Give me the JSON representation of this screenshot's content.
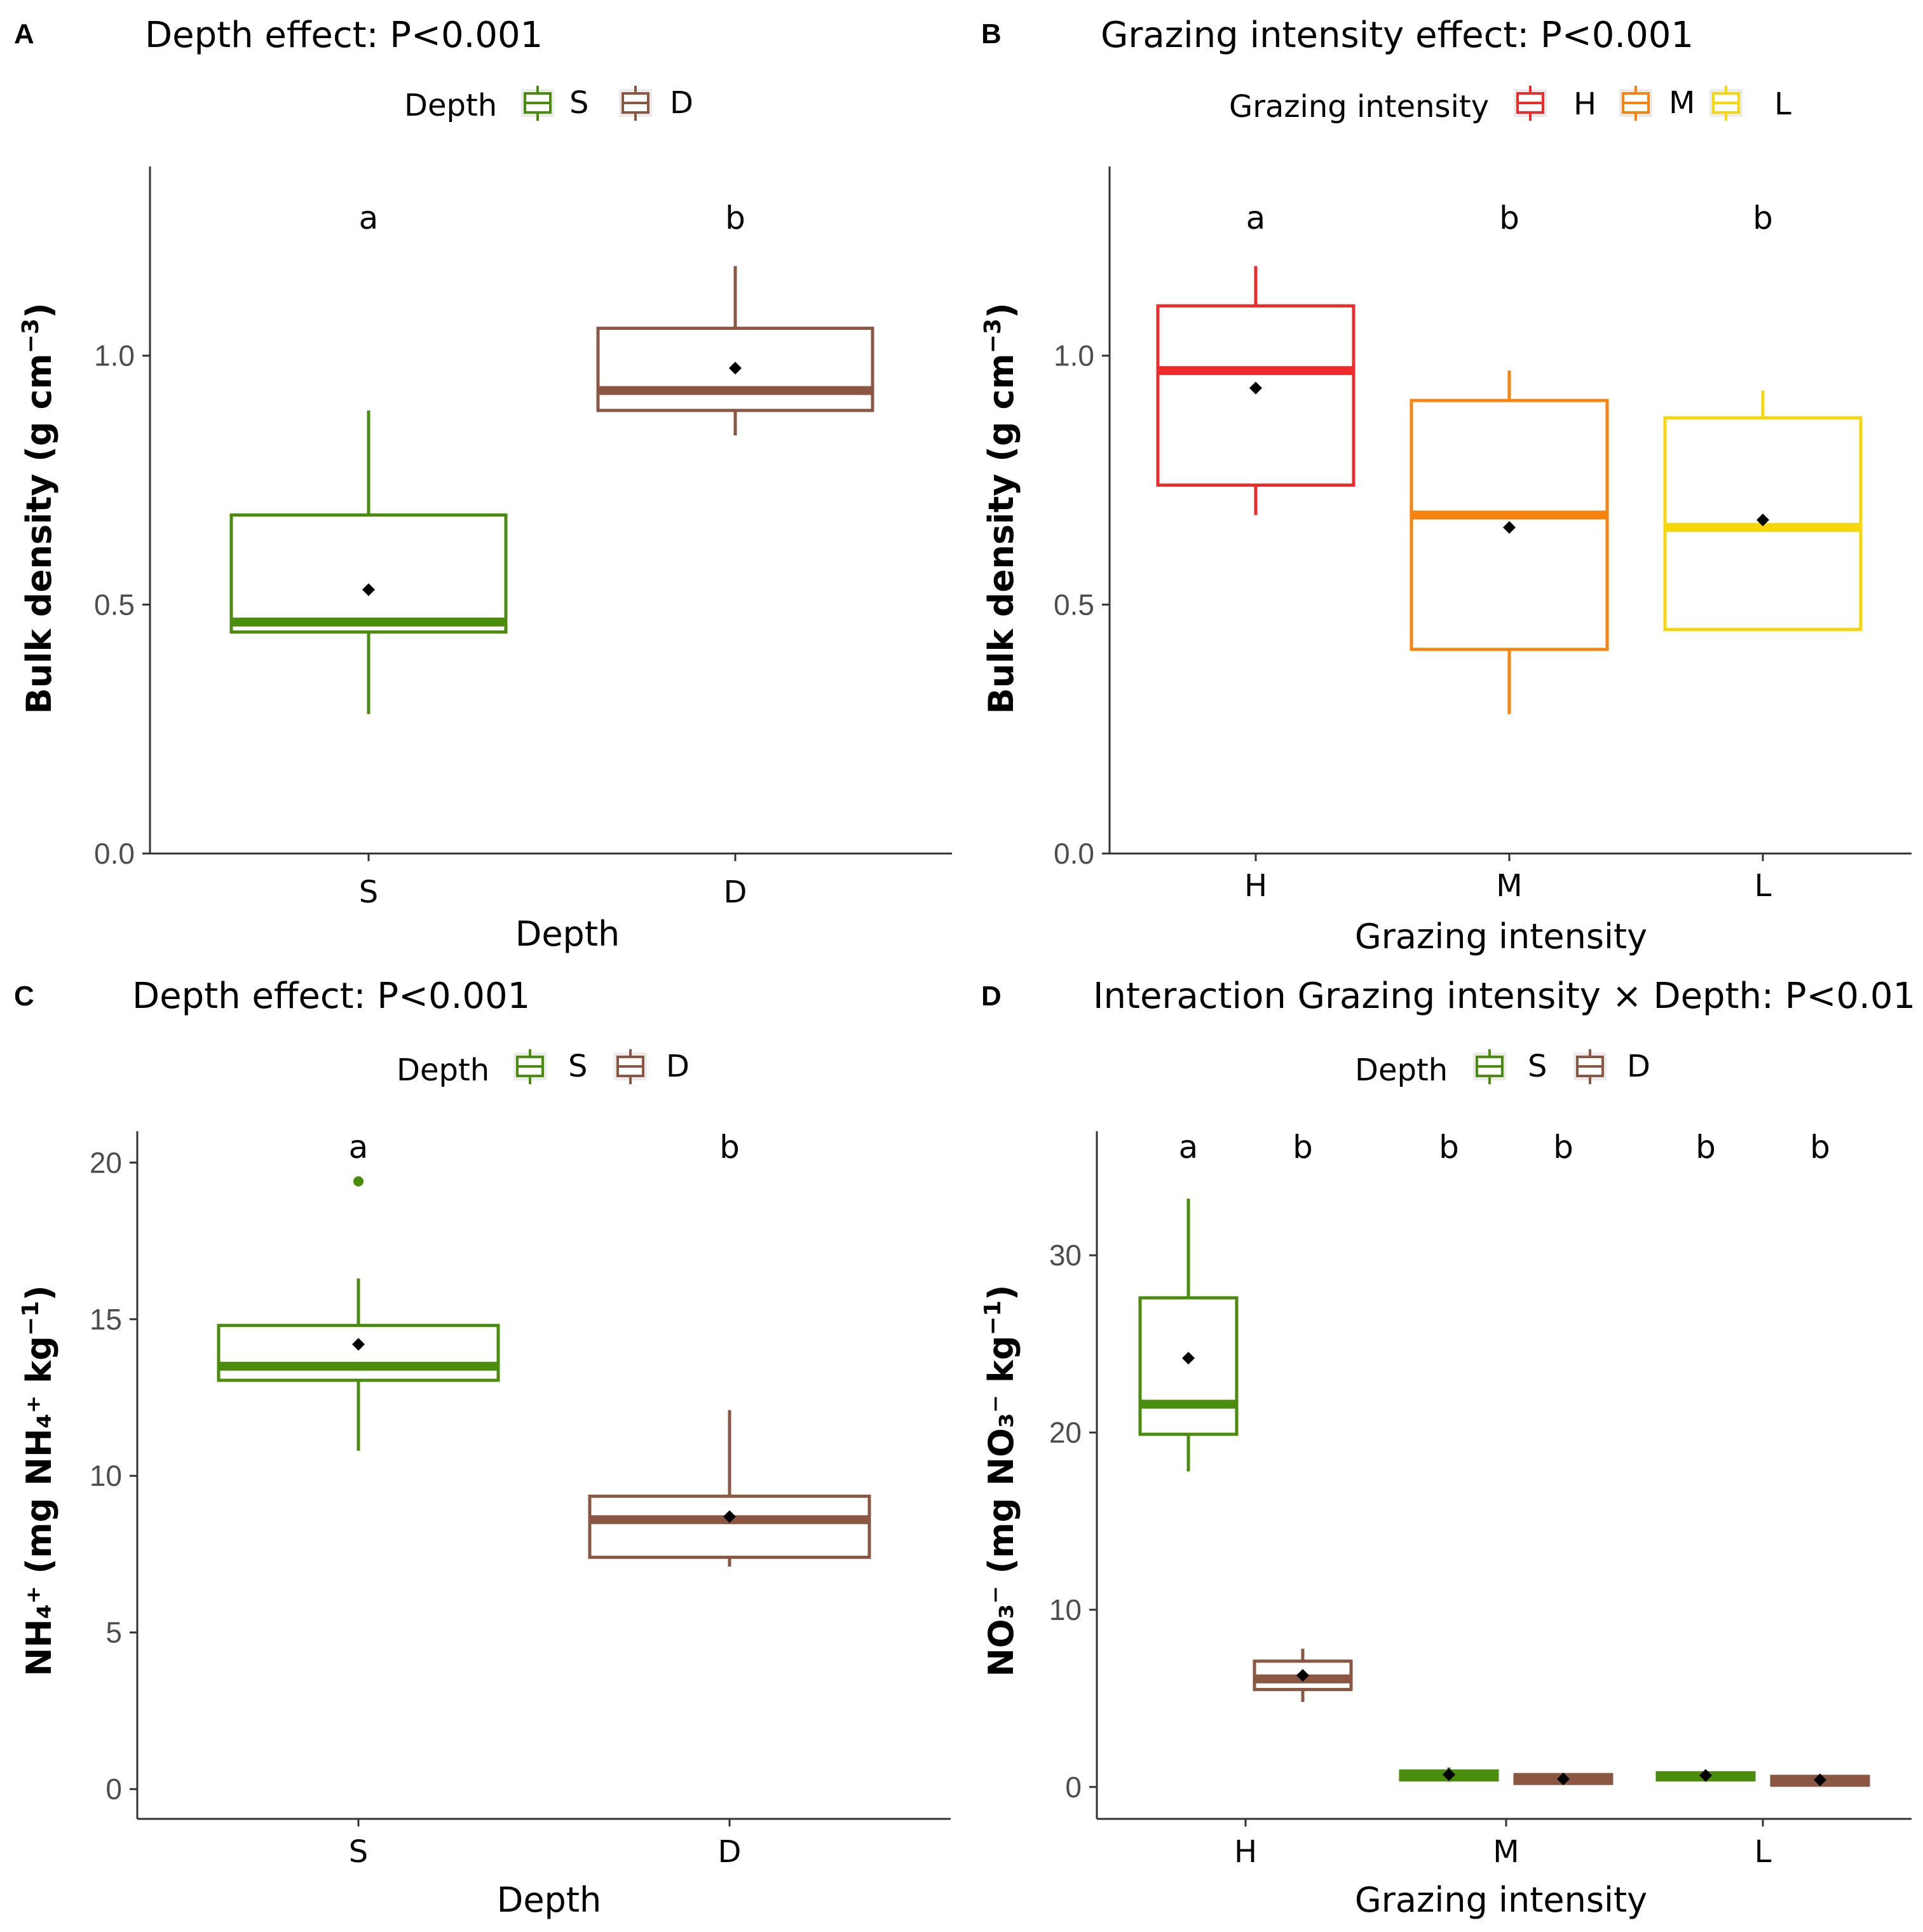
{
  "figure": {
    "panels": [
      {
        "letter": "A"
      },
      {
        "letter": "B"
      },
      {
        "letter": "C"
      },
      {
        "letter": "D"
      }
    ]
  },
  "chart_data": [
    {
      "panel": "A",
      "type": "box",
      "title": "Depth effect: P<0.001",
      "xlabel": "Depth",
      "ylabel": "Bulk density (g cm",
      "ylabel_sup": "−3",
      "ylabel_end": ")",
      "ylim": [
        0,
        1.38
      ],
      "yticks": [
        0,
        0.5,
        1.0
      ],
      "ytick_labels": [
        "0.0",
        "0.5",
        "1.0"
      ],
      "legend": {
        "title": "Depth",
        "items": [
          {
            "label": "S",
            "color": "#4a8c0c"
          },
          {
            "label": "D",
            "color": "#8b5742"
          }
        ]
      },
      "categories": [
        "S",
        "D"
      ],
      "boxes": [
        {
          "category": "S",
          "group": "S",
          "color": "#4a8c0c",
          "min": 0.28,
          "q1": 0.445,
          "median": 0.465,
          "q3": 0.68,
          "max": 0.89,
          "mean": 0.53,
          "outliers": [],
          "sig": "a"
        },
        {
          "category": "D",
          "group": "D",
          "color": "#8b5742",
          "min": 0.84,
          "q1": 0.89,
          "median": 0.93,
          "q3": 1.055,
          "max": 1.18,
          "mean": 0.975,
          "outliers": [],
          "sig": "b"
        }
      ]
    },
    {
      "panel": "B",
      "type": "box",
      "title": "Grazing intensity effect: P<0.001",
      "xlabel": "Grazing intensity",
      "ylabel": "Bulk density (g cm",
      "ylabel_sup": "−3",
      "ylabel_end": ")",
      "ylim": [
        0,
        1.38
      ],
      "yticks": [
        0,
        0.5,
        1.0
      ],
      "ytick_labels": [
        "0.0",
        "0.5",
        "1.0"
      ],
      "legend": {
        "title": "Grazing intensity",
        "items": [
          {
            "label": "H",
            "color": "#ee2b2b"
          },
          {
            "label": "M",
            "color": "#f7840f"
          },
          {
            "label": "L",
            "color": "#f8d70a"
          }
        ]
      },
      "categories": [
        "H",
        "M",
        "L"
      ],
      "boxes": [
        {
          "category": "H",
          "group": "H",
          "color": "#ee2b2b",
          "min": 0.68,
          "q1": 0.74,
          "median": 0.97,
          "q3": 1.1,
          "max": 1.18,
          "mean": 0.935,
          "outliers": [],
          "sig": "a"
        },
        {
          "category": "M",
          "group": "M",
          "color": "#f7840f",
          "min": 0.28,
          "q1": 0.41,
          "median": 0.68,
          "q3": 0.91,
          "max": 0.97,
          "mean": 0.655,
          "outliers": [],
          "sig": "b"
        },
        {
          "category": "L",
          "group": "L",
          "color": "#f8d70a",
          "min": 0.45,
          "q1": 0.45,
          "median": 0.655,
          "q3": 0.875,
          "max": 0.93,
          "mean": 0.67,
          "outliers": [],
          "sig": "b"
        }
      ]
    },
    {
      "panel": "C",
      "type": "box",
      "title": "Depth effect: P<0.001",
      "xlabel": "Depth",
      "ylabel": "NH₄⁺ (mg NH₄⁺ kg",
      "ylabel_sup": "−1",
      "ylabel_end": ")",
      "ylim": [
        -0.95,
        21.0
      ],
      "yticks": [
        0,
        5,
        10,
        15,
        20
      ],
      "ytick_labels": [
        "0",
        "5",
        "10",
        "15",
        "20"
      ],
      "legend": {
        "title": "Depth",
        "items": [
          {
            "label": "S",
            "color": "#4a8c0c"
          },
          {
            "label": "D",
            "color": "#8b5742"
          }
        ]
      },
      "categories": [
        "S",
        "D"
      ],
      "boxes": [
        {
          "category": "S",
          "group": "S",
          "color": "#4a8c0c",
          "min": 10.8,
          "q1": 13.05,
          "median": 13.5,
          "q3": 14.8,
          "max": 16.3,
          "mean": 14.2,
          "outliers": [
            19.4
          ],
          "sig": "a"
        },
        {
          "category": "D",
          "group": "D",
          "color": "#8b5742",
          "min": 7.1,
          "q1": 7.4,
          "median": 8.6,
          "q3": 9.35,
          "max": 12.1,
          "mean": 8.7,
          "outliers": [],
          "sig": "b"
        }
      ]
    },
    {
      "panel": "D",
      "type": "box",
      "title": "Interaction Grazing intensity × Depth: P<0.01",
      "xlabel": "Grazing intensity",
      "ylabel": "NO₃⁻ (mg NO₃⁻ kg",
      "ylabel_sup": "−1",
      "ylabel_end": ")",
      "ylim": [
        -1.8,
        37.0
      ],
      "yticks": [
        0,
        10,
        20,
        30
      ],
      "ytick_labels": [
        "0",
        "10",
        "20",
        "30"
      ],
      "legend": {
        "title": "Depth",
        "items": [
          {
            "label": "S",
            "color": "#4a8c0c"
          },
          {
            "label": "D",
            "color": "#8b5742"
          }
        ]
      },
      "categories": [
        "H",
        "M",
        "L"
      ],
      "boxes": [
        {
          "category": "H",
          "group": "S",
          "color": "#4a8c0c",
          "min": 17.8,
          "q1": 19.9,
          "median": 21.6,
          "q3": 27.6,
          "max": 33.2,
          "mean": 24.2,
          "outliers": [],
          "sig": "a"
        },
        {
          "category": "H",
          "group": "D",
          "color": "#8b5742",
          "min": 4.8,
          "q1": 5.5,
          "median": 6.1,
          "q3": 7.1,
          "max": 7.8,
          "mean": 6.3,
          "outliers": [],
          "sig": "b"
        },
        {
          "category": "M",
          "group": "S",
          "color": "#4a8c0c",
          "min": 0.3,
          "q1": 0.4,
          "median": 0.6,
          "q3": 0.9,
          "max": 1.1,
          "mean": 0.7,
          "outliers": [],
          "sig": "b"
        },
        {
          "category": "M",
          "group": "D",
          "color": "#8b5742",
          "min": 0.2,
          "q1": 0.2,
          "median": 0.4,
          "q3": 0.7,
          "max": 0.8,
          "mean": 0.45,
          "outliers": [],
          "sig": "b"
        },
        {
          "category": "L",
          "group": "S",
          "color": "#4a8c0c",
          "min": 0.3,
          "q1": 0.4,
          "median": 0.6,
          "q3": 0.8,
          "max": 0.9,
          "mean": 0.65,
          "outliers": [],
          "sig": "b"
        },
        {
          "category": "L",
          "group": "D",
          "color": "#8b5742",
          "min": 0.1,
          "q1": 0.1,
          "median": 0.3,
          "q3": 0.6,
          "max": 0.7,
          "mean": 0.4,
          "outliers": [],
          "sig": "b"
        }
      ]
    }
  ]
}
